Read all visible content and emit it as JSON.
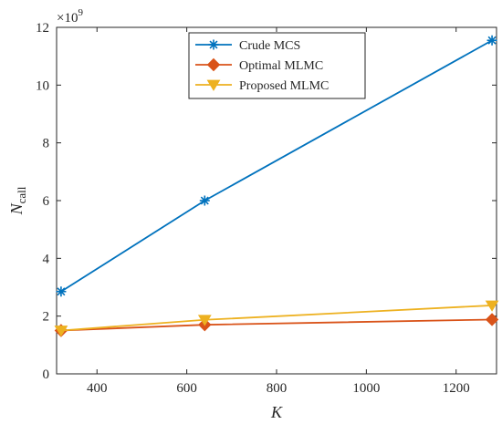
{
  "chart_data": {
    "type": "line",
    "xlabel": "K",
    "ylabel": {
      "main": "N",
      "subscript": "call"
    },
    "y_exponent": {
      "base": "×10",
      "power": "9"
    },
    "xlim": [
      310,
      1290
    ],
    "ylim": [
      0,
      12
    ],
    "x_ticks": [
      400,
      600,
      800,
      1000,
      1200
    ],
    "y_ticks": [
      0,
      2,
      4,
      6,
      8,
      10,
      12
    ],
    "legend_position": "top-center",
    "grid": false,
    "series": [
      {
        "name": "Crude MCS",
        "color": "#0072BD",
        "marker": "asterisk",
        "x": [
          320,
          640,
          1280
        ],
        "y": [
          2.85,
          6.0,
          11.55
        ]
      },
      {
        "name": "Optimal MLMC",
        "color": "#D95319",
        "marker": "diamond",
        "x": [
          320,
          640,
          1280
        ],
        "y": [
          1.5,
          1.7,
          1.88
        ]
      },
      {
        "name": "Proposed MLMC",
        "color": "#EDB120",
        "marker": "triangle-down",
        "x": [
          320,
          640,
          1280
        ],
        "y": [
          1.5,
          1.87,
          2.37
        ]
      }
    ]
  }
}
